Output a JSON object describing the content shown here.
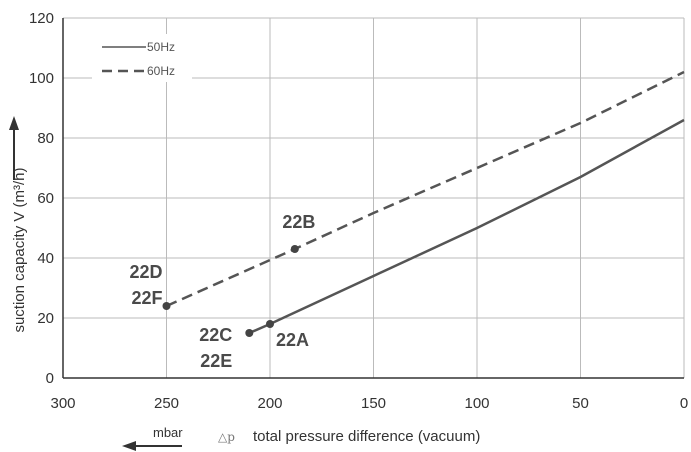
{
  "chart_data": {
    "type": "line",
    "x_axis": {
      "label": "total pressure difference (vacuum)",
      "unit_label": "mbar",
      "delta_symbol": "△p",
      "range": [
        300,
        0
      ],
      "ticks": [
        "300",
        "250",
        "200",
        "150",
        "100",
        "50",
        "0"
      ]
    },
    "y_axis": {
      "label": "suction capacity V (m³/h)",
      "range": [
        0,
        120
      ],
      "ticks": [
        "0",
        "20",
        "40",
        "60",
        "80",
        "100",
        "120"
      ]
    },
    "grid": true,
    "legend": {
      "placement": "top-left",
      "entries": [
        {
          "name": "50Hz",
          "style": "solid"
        },
        {
          "name": "60Hz",
          "style": "dashed"
        }
      ]
    },
    "series": [
      {
        "name": "50Hz",
        "style": "solid",
        "x": [
          210,
          200,
          150,
          100,
          50,
          0
        ],
        "y": [
          15,
          18,
          34,
          50,
          67,
          86
        ]
      },
      {
        "name": "60Hz",
        "style": "dashed",
        "x": [
          250,
          188,
          150,
          100,
          50,
          0
        ],
        "y": [
          24,
          43,
          55,
          70,
          85,
          102
        ]
      }
    ],
    "annotations": [
      {
        "lines": [
          "22A"
        ],
        "x": 200,
        "y": 18
      },
      {
        "lines": [
          "22C",
          "22E"
        ],
        "x": 210,
        "y": 15
      },
      {
        "lines": [
          "22B"
        ],
        "x": 188,
        "y": 43
      },
      {
        "lines": [
          "22D",
          "22F"
        ],
        "x": 250,
        "y": 24
      }
    ],
    "colors": {
      "line": "#555555",
      "grid": "#bbbbbb",
      "axis": "#333333"
    }
  }
}
